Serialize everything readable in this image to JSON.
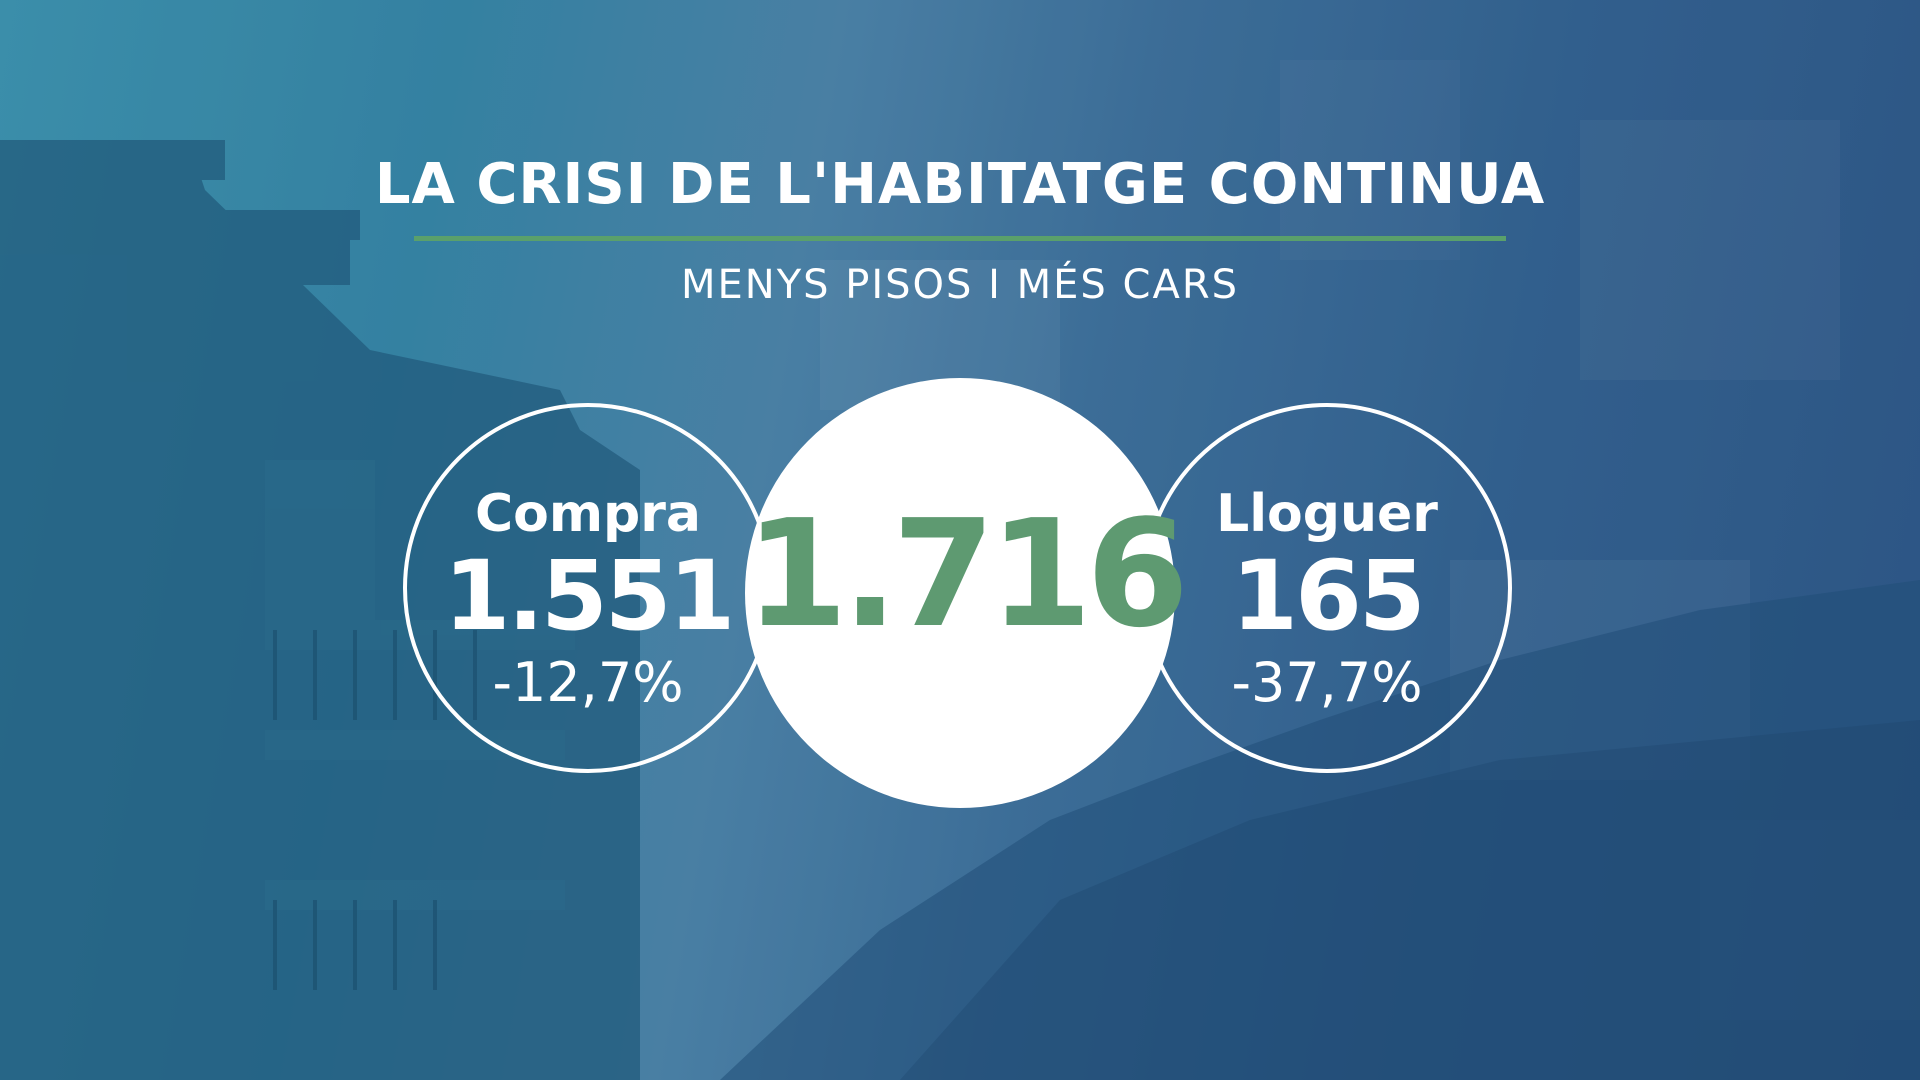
{
  "header": {
    "title": "LA CRISI DE L'HABITATGE CONTINUA",
    "subtitle": "MENYS PISOS I MÉS CARS"
  },
  "total": {
    "value": "1.716"
  },
  "stats": [
    {
      "label": "Compra",
      "value": "1.551",
      "change": "-12,7%"
    },
    {
      "label": "Lloguer",
      "value": "165",
      "change": "-37,7%"
    }
  ],
  "colors": {
    "accent_green": "#5e9a71",
    "divider_green": "#5aa06b",
    "background_blue": "#3584a3"
  }
}
